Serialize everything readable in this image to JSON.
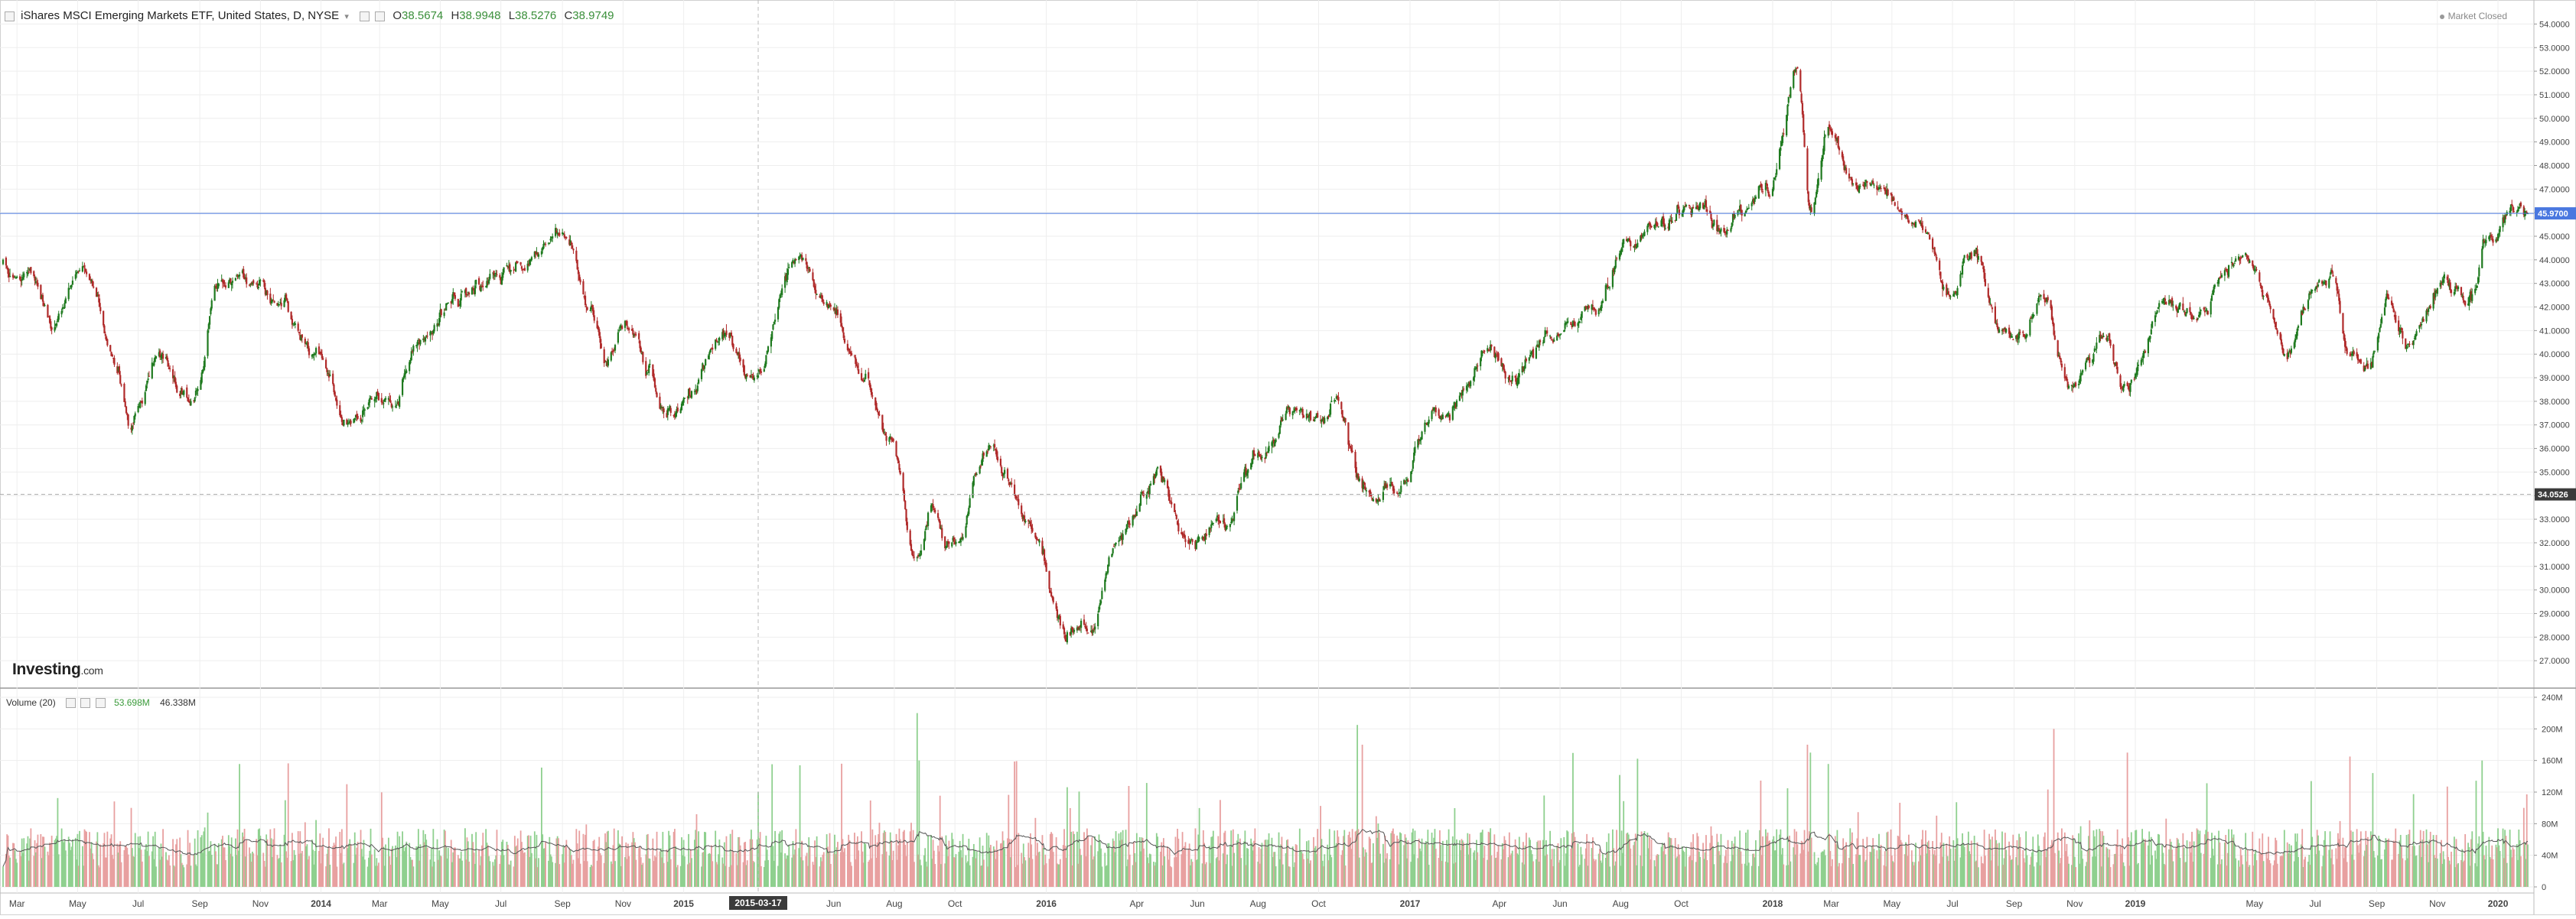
{
  "header": {
    "title": "iShares MSCI Emerging Markets ETF, United States, D, NYSE",
    "open_label": "O",
    "open": "38.5674",
    "high_label": "H",
    "high": "38.9948",
    "low_label": "L",
    "low": "38.5276",
    "close_label": "C",
    "close": "38.9749"
  },
  "status": {
    "market": "Market Closed"
  },
  "logo": {
    "main": "Investing",
    "suffix": ".com"
  },
  "volume_header": {
    "label": "Volume (20)",
    "value1": "53.698M",
    "value2": "46.338M"
  },
  "crosshair": {
    "date_label": "2015-03-17",
    "price_label": "34.0526",
    "price": 34.0526
  },
  "last_price": {
    "label": "45.9700",
    "value": 45.97
  },
  "colors": {
    "up": "#1f7a1f",
    "down": "#b02a2a",
    "vol_up": "#8fd08f",
    "vol_down": "#e8a0a0",
    "ma_line": "#555555",
    "last_price_line": "#4a78e0",
    "last_price_bg": "#4a78e0",
    "crosshair_bg": "#3b3b3b",
    "grid": "#eeeeee"
  },
  "chart_data": [
    {
      "type": "candlestick",
      "series_name": "iShares MSCI Emerging Markets ETF",
      "y_axis_side": "right",
      "ylim": [
        26,
        54.5
      ],
      "y_ticks": [
        27,
        28,
        29,
        30,
        31,
        32,
        33,
        34,
        35,
        36,
        37,
        38,
        39,
        40,
        41,
        42,
        43,
        44,
        45,
        46,
        47,
        48,
        49,
        50,
        51,
        52,
        53,
        54
      ],
      "y_tick_labels": [
        "27.0000",
        "28.0000",
        "29.0000",
        "30.0000",
        "31.0000",
        "32.0000",
        "33.0000",
        "34.0000",
        "35.0000",
        "36.0000",
        "37.0000",
        "38.0000",
        "39.0000",
        "40.0000",
        "41.0000",
        "42.0000",
        "43.0000",
        "44.0000",
        "45.0000",
        "46.0000",
        "47.0000",
        "48.0000",
        "49.0000",
        "50.0000",
        "51.0000",
        "52.0000",
        "53.0000",
        "54.0000"
      ],
      "x_range": [
        "2013-02-15",
        "2020-01-31"
      ],
      "close_path": [
        [
          "2013-02-15",
          43.9
        ],
        [
          "2013-03-15",
          43.2
        ],
        [
          "2013-04-05",
          41.5
        ],
        [
          "2013-05-08",
          43.9
        ],
        [
          "2013-06-10",
          39.5
        ],
        [
          "2013-06-24",
          37.0
        ],
        [
          "2013-07-22",
          39.8
        ],
        [
          "2013-08-27",
          38.0
        ],
        [
          "2013-09-19",
          42.7
        ],
        [
          "2013-10-22",
          43.5
        ],
        [
          "2013-11-20",
          42.1
        ],
        [
          "2013-12-18",
          40.5
        ],
        [
          "2014-02-03",
          37.3
        ],
        [
          "2014-03-14",
          38.3
        ],
        [
          "2014-04-08",
          40.8
        ],
        [
          "2014-05-22",
          42.2
        ],
        [
          "2014-07-03",
          43.2
        ],
        [
          "2014-07-30",
          44.2
        ],
        [
          "2014-09-04",
          45.5
        ],
        [
          "2014-09-30",
          41.7
        ],
        [
          "2014-10-16",
          39.5
        ],
        [
          "2014-11-03",
          41.7
        ],
        [
          "2014-12-15",
          37.5
        ],
        [
          "2015-01-06",
          38.5
        ],
        [
          "2015-02-10",
          40.5
        ],
        [
          "2015-03-12",
          39.0
        ],
        [
          "2015-04-27",
          44.0
        ],
        [
          "2015-05-20",
          42.6
        ],
        [
          "2015-06-30",
          39.3
        ],
        [
          "2015-07-27",
          36.2
        ],
        [
          "2015-08-24",
          31.4
        ],
        [
          "2015-09-08",
          33.3
        ],
        [
          "2015-09-29",
          31.8
        ],
        [
          "2015-11-03",
          35.7
        ],
        [
          "2015-12-14",
          33.1
        ],
        [
          "2016-01-21",
          28.3
        ],
        [
          "2016-02-11",
          28.5
        ],
        [
          "2016-03-15",
          32.1
        ],
        [
          "2016-04-20",
          34.8
        ],
        [
          "2016-05-24",
          32.1
        ],
        [
          "2016-06-27",
          33.0
        ],
        [
          "2016-07-29",
          35.5
        ],
        [
          "2016-09-07",
          37.6
        ],
        [
          "2016-09-30",
          37.3
        ],
        [
          "2016-10-20",
          37.8
        ],
        [
          "2016-11-14",
          34.2
        ],
        [
          "2016-12-15",
          34.3
        ],
        [
          "2017-01-31",
          37.5
        ],
        [
          "2017-03-20",
          40.1
        ],
        [
          "2017-04-13",
          39.0
        ],
        [
          "2017-05-31",
          41.0
        ],
        [
          "2017-07-05",
          41.5
        ],
        [
          "2017-07-31",
          44.3
        ],
        [
          "2017-08-30",
          45.1
        ],
        [
          "2017-10-10",
          46.8
        ],
        [
          "2017-11-14",
          45.4
        ],
        [
          "2017-12-29",
          47.1
        ],
        [
          "2018-01-26",
          52.1
        ],
        [
          "2018-02-08",
          46.2
        ],
        [
          "2018-02-27",
          49.2
        ],
        [
          "2018-03-22",
          47.3
        ],
        [
          "2018-04-23",
          46.8
        ],
        [
          "2018-05-29",
          45.5
        ],
        [
          "2018-06-28",
          42.5
        ],
        [
          "2018-07-25",
          44.2
        ],
        [
          "2018-08-15",
          41.5
        ],
        [
          "2018-09-11",
          40.5
        ],
        [
          "2018-09-28",
          42.8
        ],
        [
          "2018-10-29",
          38.5
        ],
        [
          "2018-11-30",
          40.7
        ],
        [
          "2018-12-24",
          38.5
        ],
        [
          "2019-01-31",
          42.2
        ],
        [
          "2019-03-08",
          41.6
        ],
        [
          "2019-04-17",
          44.2
        ],
        [
          "2019-05-13",
          42.2
        ],
        [
          "2019-06-03",
          40.2
        ],
        [
          "2019-06-28",
          42.8
        ],
        [
          "2019-07-19",
          43.2
        ],
        [
          "2019-08-05",
          40.2
        ],
        [
          "2019-08-23",
          39.0
        ],
        [
          "2019-09-13",
          42.0
        ],
        [
          "2019-10-02",
          40.3
        ],
        [
          "2019-11-06",
          43.2
        ],
        [
          "2019-12-03",
          42.5
        ],
        [
          "2019-12-27",
          45.1
        ],
        [
          "2020-01-14",
          46.2
        ],
        [
          "2020-01-31",
          45.97
        ]
      ],
      "last_value": 45.97
    },
    {
      "type": "bar",
      "series_name": "Volume (20)",
      "y_axis_side": "right",
      "ylim": [
        0,
        240000000
      ],
      "y_ticks": [
        0,
        40000000,
        80000000,
        120000000,
        160000000,
        200000000,
        240000000
      ],
      "y_tick_labels": [
        "0",
        "40M",
        "80M",
        "120M",
        "160M",
        "200M",
        "240M"
      ],
      "baseline_volume_millions": 55,
      "moving_average_period": 20,
      "notable_spikes_millions": [
        [
          "2013-06-24",
          100
        ],
        [
          "2014-01-27",
          130
        ],
        [
          "2015-03-17",
          120
        ],
        [
          "2015-08-24",
          220
        ],
        [
          "2015-08-26",
          160
        ],
        [
          "2016-06-24",
          110
        ],
        [
          "2016-11-09",
          205
        ],
        [
          "2016-11-14",
          180
        ],
        [
          "2018-02-05",
          180
        ],
        [
          "2018-02-08",
          170
        ],
        [
          "2018-10-11",
          200
        ],
        [
          "2018-12-24",
          170
        ],
        [
          "2019-08-05",
          165
        ],
        [
          "2019-12-16",
          160
        ],
        [
          "2020-01-27",
          100
        ]
      ],
      "latest_values_millions": [
        53.698,
        46.338
      ]
    }
  ],
  "x_axis": {
    "labels": [
      [
        "2013-03-01",
        "Mar"
      ],
      [
        "2013-05-01",
        "May"
      ],
      [
        "2013-07-01",
        "Jul"
      ],
      [
        "2013-09-01",
        "Sep"
      ],
      [
        "2013-11-01",
        "Nov"
      ],
      [
        "2014-01-01",
        "2014"
      ],
      [
        "2014-03-01",
        "Mar"
      ],
      [
        "2014-05-01",
        "May"
      ],
      [
        "2014-07-01",
        "Jul"
      ],
      [
        "2014-09-01",
        "Sep"
      ],
      [
        "2014-11-01",
        "Nov"
      ],
      [
        "2015-01-01",
        "2015"
      ],
      [
        "2015-06-01",
        "Jun"
      ],
      [
        "2015-08-01",
        "Aug"
      ],
      [
        "2015-10-01",
        "Oct"
      ],
      [
        "2016-01-01",
        "2016"
      ],
      [
        "2016-04-01",
        "Apr"
      ],
      [
        "2016-06-01",
        "Jun"
      ],
      [
        "2016-08-01",
        "Aug"
      ],
      [
        "2016-10-01",
        "Oct"
      ],
      [
        "2017-01-01",
        "2017"
      ],
      [
        "2017-04-01",
        "Apr"
      ],
      [
        "2017-06-01",
        "Jun"
      ],
      [
        "2017-08-01",
        "Aug"
      ],
      [
        "2017-10-01",
        "Oct"
      ],
      [
        "2018-01-01",
        "2018"
      ],
      [
        "2018-03-01",
        "Mar"
      ],
      [
        "2018-05-01",
        "May"
      ],
      [
        "2018-07-01",
        "Jul"
      ],
      [
        "2018-09-01",
        "Sep"
      ],
      [
        "2018-11-01",
        "Nov"
      ],
      [
        "2019-01-01",
        "2019"
      ],
      [
        "2019-05-01",
        "May"
      ],
      [
        "2019-07-01",
        "Jul"
      ],
      [
        "2019-09-01",
        "Sep"
      ],
      [
        "2019-11-01",
        "Nov"
      ],
      [
        "2020-01-01",
        "2020"
      ]
    ],
    "bold_labels": [
      "2014",
      "2015",
      "2016",
      "2017",
      "2018",
      "2019",
      "2020"
    ]
  }
}
